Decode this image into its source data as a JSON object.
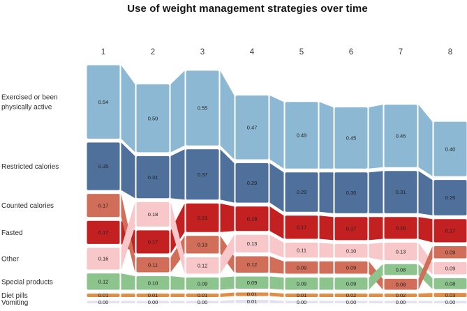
{
  "title": "Use of weight management strategies over time",
  "chart_data": {
    "type": "bar",
    "variant": "ranked stacked bars connected by flow bands (bump chart)",
    "title": "Use of weight management strategies over time",
    "columns": [
      "1",
      "2",
      "3",
      "4",
      "5",
      "6",
      "7",
      "8"
    ],
    "categories": [
      {
        "id": "exercised",
        "label_lines": [
          "Exercised or been",
          "physically active"
        ],
        "color": "#8db8d3",
        "values": [
          0.54,
          0.5,
          0.55,
          0.47,
          0.49,
          0.45,
          0.46,
          0.4
        ]
      },
      {
        "id": "restricted",
        "label_lines": [
          "Restricted calories"
        ],
        "color": "#4f709b",
        "values": [
          0.35,
          0.31,
          0.37,
          0.29,
          0.29,
          0.3,
          0.31,
          0.26
        ]
      },
      {
        "id": "counted",
        "label_lines": [
          "Counted calories"
        ],
        "color": "#d06e5a",
        "values": [
          0.17,
          0.11,
          0.13,
          0.12,
          0.09,
          0.09,
          0.08,
          0.09
        ]
      },
      {
        "id": "fasted",
        "label_lines": [
          "Fasted"
        ],
        "color": "#c32022",
        "values": [
          0.17,
          0.17,
          0.21,
          0.18,
          0.17,
          0.17,
          0.16,
          0.17
        ]
      },
      {
        "id": "other",
        "label_lines": [
          "Other"
        ],
        "color": "#f8c7ca",
        "values": [
          0.16,
          0.18,
          0.12,
          0.13,
          0.11,
          0.1,
          0.13,
          0.09
        ]
      },
      {
        "id": "special",
        "label_lines": [
          "Special products"
        ],
        "color": "#8dc48e",
        "values": [
          0.12,
          0.1,
          0.09,
          0.09,
          0.09,
          0.09,
          0.08,
          0.08
        ]
      },
      {
        "id": "dietpills",
        "label_lines": [
          "Diet pills"
        ],
        "color": "#dd8e49",
        "values": [
          0.01,
          0.01,
          0.01,
          0.01,
          0.01,
          0.02,
          0.02,
          0.03
        ]
      },
      {
        "id": "vomiting",
        "label_lines": [
          "Vomiting"
        ],
        "color": "#e3e2f1",
        "values": [
          0.0,
          0.0,
          0.0,
          0.01,
          0.0,
          0.0,
          0.0,
          0.0
        ]
      }
    ],
    "stack_order": [
      [
        "exercised",
        "restricted",
        "counted",
        "fasted",
        "other",
        "special",
        "dietpills",
        "vomiting"
      ],
      [
        "exercised",
        "restricted",
        "other",
        "fasted",
        "counted",
        "special",
        "dietpills",
        "vomiting"
      ],
      [
        "exercised",
        "restricted",
        "fasted",
        "counted",
        "other",
        "special",
        "dietpills",
        "vomiting"
      ],
      [
        "exercised",
        "restricted",
        "fasted",
        "other",
        "counted",
        "special",
        "dietpills",
        "vomiting"
      ],
      [
        "exercised",
        "restricted",
        "fasted",
        "other",
        "counted",
        "special",
        "dietpills",
        "vomiting"
      ],
      [
        "exercised",
        "restricted",
        "fasted",
        "other",
        "counted",
        "special",
        "dietpills",
        "vomiting"
      ],
      [
        "exercised",
        "restricted",
        "fasted",
        "other",
        "special",
        "counted",
        "dietpills",
        "vomiting"
      ],
      [
        "exercised",
        "restricted",
        "fasted",
        "counted",
        "other",
        "special",
        "dietpills",
        "vomiting"
      ]
    ],
    "value_format": "two decimals",
    "text_color": "#1f1f1f",
    "header_color": "#3c3c3c",
    "label_color": "#2b2b2b",
    "background": "#ffffff"
  }
}
